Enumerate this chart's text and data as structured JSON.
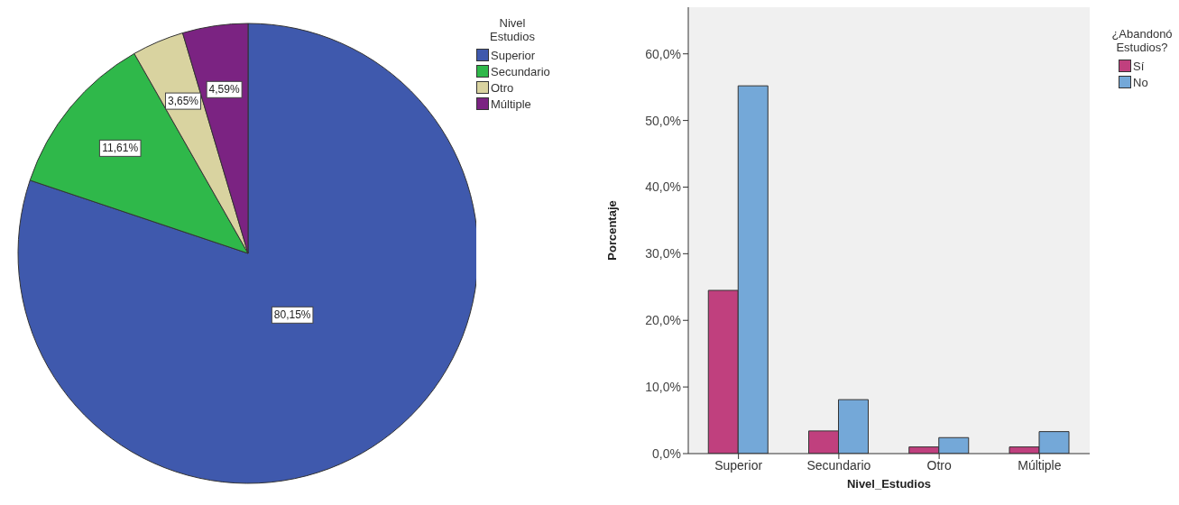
{
  "chart_data": [
    {
      "type": "pie",
      "legend_title": "Nivel Estudios",
      "legend": "top right",
      "categories": [
        "Superior",
        "Secundario",
        "Otro",
        "Múltiple"
      ],
      "values": [
        80.15,
        11.61,
        3.65,
        4.59
      ],
      "colors": [
        "#3f59ad",
        "#2fb84a",
        "#d9d3a0",
        "#7b2382"
      ],
      "value_labels": [
        "80,15%",
        "11,61%",
        "3,65%",
        "4,59%"
      ]
    },
    {
      "type": "bar",
      "xlabel": "Nivel_Estudios",
      "ylabel": "Porcentaje",
      "legend_title": "¿Abandonó Estudios?",
      "legend": "top right",
      "categories": [
        "Superior",
        "Secundario",
        "Otro",
        "Múltiple"
      ],
      "series": [
        {
          "name": "Sí",
          "color": "#c0407e",
          "values": [
            24.5,
            3.4,
            1.0,
            1.0
          ]
        },
        {
          "name": "No",
          "color": "#74a8d8",
          "values": [
            55.2,
            8.1,
            2.4,
            3.3
          ]
        }
      ],
      "ylim": [
        0,
        67
      ],
      "yticks": [
        {
          "value": 0,
          "label": "0,0%"
        },
        {
          "value": 10,
          "label": "10,0%"
        },
        {
          "value": 20,
          "label": "20,0%"
        },
        {
          "value": 30,
          "label": "30,0%"
        },
        {
          "value": 40,
          "label": "40,0%"
        },
        {
          "value": 50,
          "label": "50,0%"
        },
        {
          "value": 60,
          "label": "60,0%"
        }
      ]
    }
  ]
}
